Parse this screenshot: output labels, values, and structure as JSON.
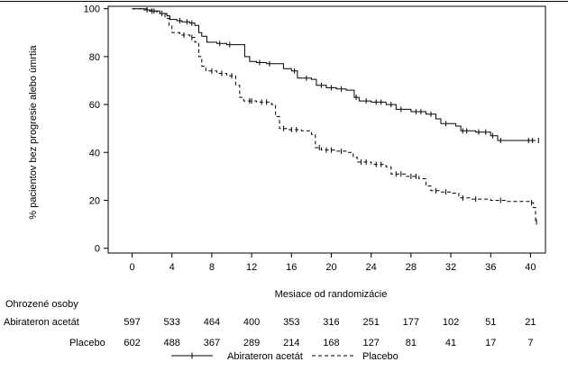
{
  "chart_data": {
    "type": "line",
    "xlabel": "Mesiace od randomizácie",
    "ylabel": "% pacientov bez progresie alebo úmrtia",
    "xlim": [
      -2.4,
      41.5
    ],
    "ylim": [
      -2,
      101
    ],
    "x_ticks": [
      0,
      4,
      8,
      12,
      16,
      20,
      24,
      28,
      32,
      36,
      40
    ],
    "y_ticks": [
      0,
      20,
      40,
      60,
      80,
      100
    ],
    "grid": false,
    "legend_position": "bottom-center",
    "series": [
      {
        "name": "Abirateron acetát",
        "line_style": "solid",
        "color": "#000000",
        "steps": [
          [
            0,
            100
          ],
          [
            1.2,
            99.5
          ],
          [
            2,
            99
          ],
          [
            2.8,
            98
          ],
          [
            3.5,
            97
          ],
          [
            3.8,
            95.5
          ],
          [
            4.5,
            95
          ],
          [
            5,
            94.5
          ],
          [
            5.8,
            94
          ],
          [
            6.3,
            93
          ],
          [
            6.7,
            90
          ],
          [
            7,
            88.5
          ],
          [
            7.5,
            86
          ],
          [
            8.5,
            85.5
          ],
          [
            9.5,
            85
          ],
          [
            10.8,
            85
          ],
          [
            11.3,
            80
          ],
          [
            11.8,
            78
          ],
          [
            12.5,
            77.5
          ],
          [
            13.5,
            77
          ],
          [
            14.8,
            77
          ],
          [
            15.2,
            75
          ],
          [
            16,
            74
          ],
          [
            16.6,
            71
          ],
          [
            18,
            70.5
          ],
          [
            18.5,
            68
          ],
          [
            19.5,
            67
          ],
          [
            20.5,
            66.5
          ],
          [
            21.5,
            66
          ],
          [
            22.3,
            63
          ],
          [
            22.8,
            61.5
          ],
          [
            24,
            61
          ],
          [
            25.5,
            60
          ],
          [
            26.5,
            58
          ],
          [
            28,
            57
          ],
          [
            29.5,
            56
          ],
          [
            30.5,
            54
          ],
          [
            31,
            52
          ],
          [
            32.5,
            51
          ],
          [
            33,
            49
          ],
          [
            34.5,
            48.5
          ],
          [
            36,
            47
          ],
          [
            36.7,
            45
          ],
          [
            40.5,
            45
          ]
        ],
        "censor_x": [
          1.5,
          2.2,
          3,
          4.8,
          5.5,
          6,
          8.8,
          9.8,
          12.8,
          13.8,
          16.3,
          17.5,
          19,
          20,
          21,
          22.5,
          23.5,
          24.5,
          25,
          26,
          27,
          28.5,
          29,
          30,
          31.5,
          33.2,
          33.6,
          34.8,
          35.5,
          36.2,
          37,
          39.8,
          40.2,
          40.8
        ]
      },
      {
        "name": "Placebo",
        "line_style": "dashed",
        "color": "#000000",
        "steps": [
          [
            0,
            100
          ],
          [
            1.5,
            99
          ],
          [
            2.5,
            98
          ],
          [
            3.3,
            96
          ],
          [
            3.7,
            93
          ],
          [
            4,
            90
          ],
          [
            4.8,
            89
          ],
          [
            5.8,
            88
          ],
          [
            6.3,
            86
          ],
          [
            6.7,
            80
          ],
          [
            7,
            76
          ],
          [
            7.4,
            74
          ],
          [
            8.5,
            73
          ],
          [
            9.5,
            72
          ],
          [
            10.4,
            68
          ],
          [
            10.8,
            63
          ],
          [
            11.2,
            61.5
          ],
          [
            12.5,
            61
          ],
          [
            14,
            60
          ],
          [
            14.4,
            55
          ],
          [
            14.8,
            50
          ],
          [
            15.5,
            49.5
          ],
          [
            17,
            49
          ],
          [
            18,
            47.5
          ],
          [
            18.4,
            42
          ],
          [
            19,
            41
          ],
          [
            20.5,
            40.5
          ],
          [
            21.5,
            40
          ],
          [
            22.2,
            38
          ],
          [
            22.6,
            36
          ],
          [
            24,
            35
          ],
          [
            25.5,
            34
          ],
          [
            26,
            31
          ],
          [
            27.5,
            30
          ],
          [
            28.8,
            29
          ],
          [
            29.5,
            26
          ],
          [
            30,
            24
          ],
          [
            31,
            23.5
          ],
          [
            32,
            23
          ],
          [
            32.8,
            21
          ],
          [
            34,
            20.5
          ],
          [
            36,
            20
          ],
          [
            37.5,
            19.5
          ],
          [
            40,
            19
          ],
          [
            40.3,
            17
          ],
          [
            40.5,
            11
          ]
        ],
        "censor_x": [
          2,
          5.2,
          6,
          8,
          9,
          10,
          11.8,
          12,
          13,
          13.5,
          15.2,
          16,
          16.5,
          18.8,
          19.5,
          20,
          21,
          23,
          23.5,
          24.5,
          25,
          26.5,
          27,
          28,
          28.5,
          30.5,
          31.5,
          33.2,
          34.5,
          37,
          40.1,
          40.6
        ]
      }
    ],
    "risk_table": {
      "title": "Ohrozené osoby",
      "time_points": [
        0,
        4,
        8,
        12,
        16,
        20,
        24,
        28,
        32,
        36,
        40
      ],
      "rows": [
        {
          "label": "Abirateron acetát",
          "values": [
            "597",
            "533",
            "464",
            "400",
            "353",
            "316",
            "251",
            "177",
            "102",
            "51",
            "21"
          ]
        },
        {
          "label": "Placebo",
          "values": [
            "602",
            "488",
            "367",
            "289",
            "214",
            "168",
            "127",
            "81",
            "41",
            "17",
            "7"
          ]
        }
      ]
    }
  }
}
